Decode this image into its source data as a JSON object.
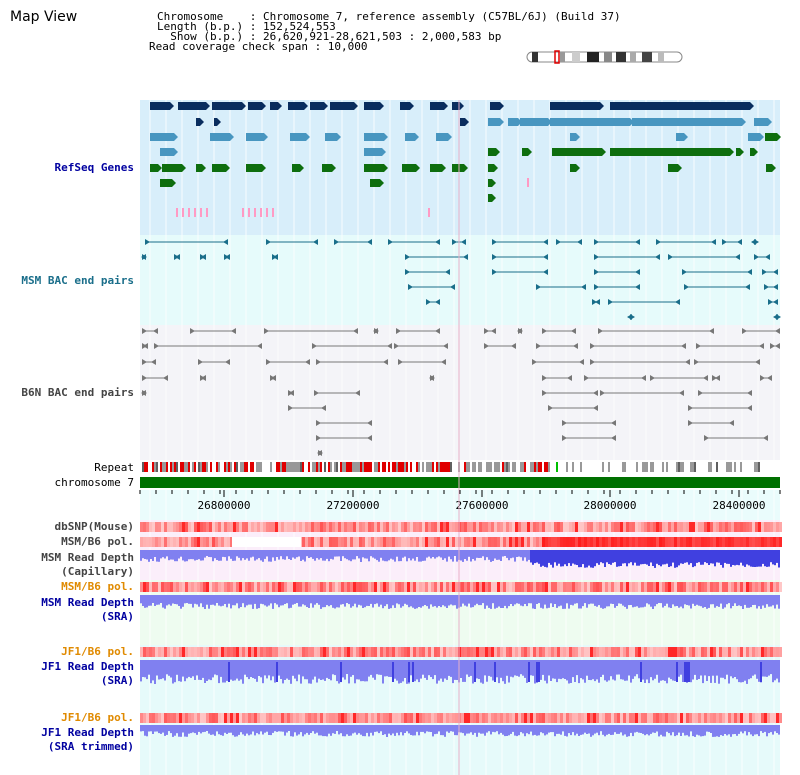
{
  "page": {
    "title": "Map View"
  },
  "info": {
    "line1": "Chromosome    : Chromosome 7, reference assembly (C57BL/6J) (Build 37)",
    "line2": "Length (b.p.) : 152,524,553",
    "line3": "  Show (b.p.) : 26,620,921-28,621,503 : 2,000,583 bp",
    "line4": "Read coverage check span : 10,000"
  },
  "tracks": {
    "refseq": "RefSeq Genes",
    "msm_bac": "MSM BAC end pairs",
    "b6n_bac": "B6N BAC end pairs",
    "repeat": "Repeat",
    "chromosome": "chromosome 7",
    "dbsnp": "dbSNP(Mouse)",
    "msm_b6_pol": "MSM/B6 pol.",
    "msm_read_cap_1": "MSM Read Depth",
    "msm_read_cap_2": "(Capillary)",
    "msm_b6_pol2": "MSM/B6 pol.",
    "msm_read_sra_1": "MSM Read Depth",
    "msm_read_sra_2": "(SRA)",
    "jf1_b6_pol": "JF1/B6 pol.",
    "jf1_read_sra_1": "JF1 Read Depth",
    "jf1_read_sra_2": "(SRA)",
    "jf1_b6_pol2": "JF1/B6 pol.",
    "jf1_read_trim_1": "JF1 Read Depth",
    "jf1_read_trim_2": "(SRA trimmed)"
  },
  "axis": {
    "ticks": [
      "26800000",
      "27200000",
      "27600000",
      "28000000",
      "28400000"
    ]
  },
  "colors": {
    "refseq_bg": "#d8eefa",
    "bac_bg": "#e6fbfb",
    "b6n_bg": "#f4f4f8",
    "gene_navy": "#0a2d5e",
    "gene_blue": "#4896c0",
    "gene_green": "#0e6e0e",
    "bac_teal": "#1a6e8a",
    "chromosome": "#007000",
    "snp": "#f08080",
    "depth_blue": "#4040e0",
    "depth_light": "#8080f0"
  }
}
